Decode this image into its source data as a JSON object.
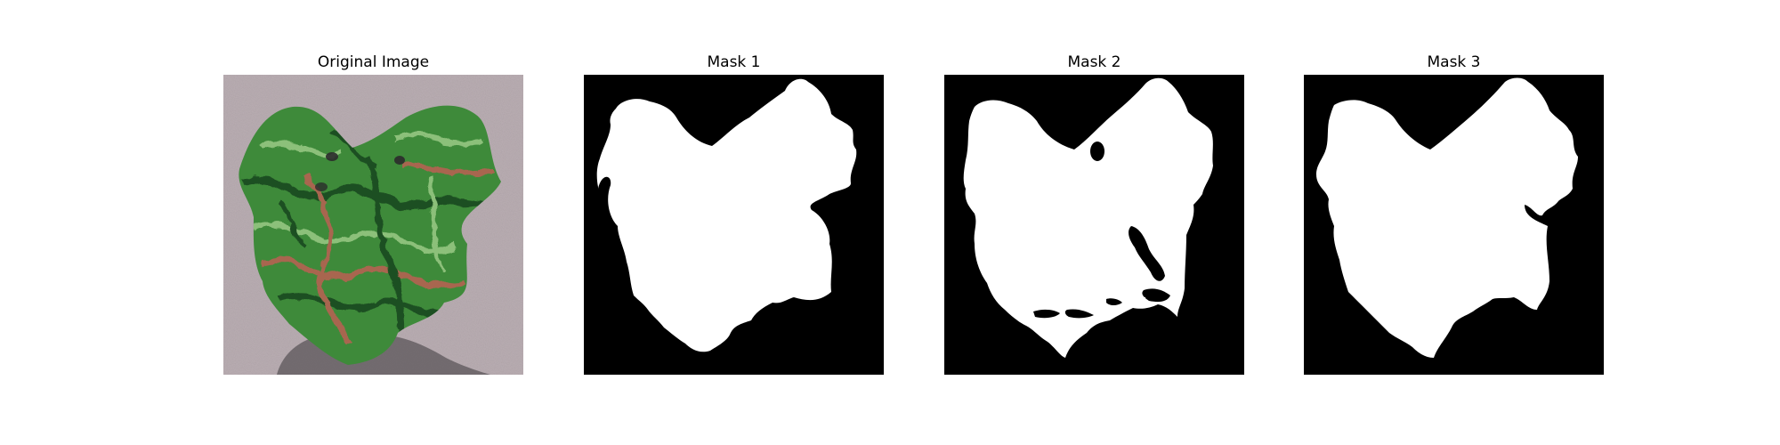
{
  "figure": {
    "panels": [
      {
        "title": "Original Image",
        "kind": "photo",
        "subject": "leaf-photo"
      },
      {
        "title": "Mask 1",
        "kind": "mask"
      },
      {
        "title": "Mask 2",
        "kind": "mask"
      },
      {
        "title": "Mask 3",
        "kind": "mask"
      }
    ]
  },
  "colors": {
    "figure_background": "#ffffff",
    "mask_background": "#000000",
    "mask_foreground": "#ffffff",
    "photo_background": "#b9adb2",
    "leaf_green": "#3e8a3a",
    "leaf_dark": "#1f4f21",
    "leaf_highlight": "#8cc07a",
    "leaf_reddish": "#a8664f",
    "shadow": "#5b555a"
  }
}
